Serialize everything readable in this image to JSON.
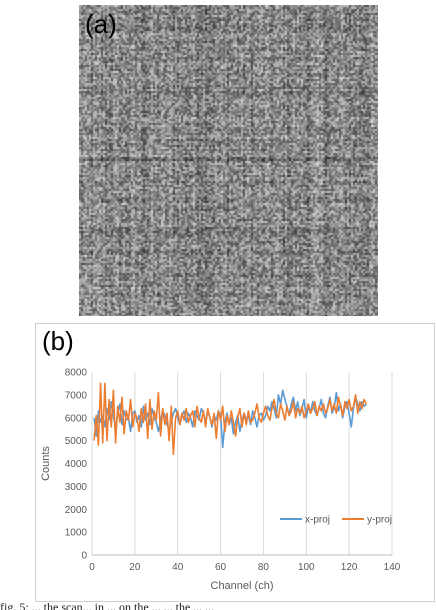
{
  "panel_a": {
    "label": "(a)"
  },
  "panel_b": {
    "label": "(b)"
  },
  "caption": "fig. 5: ... the scan... in ... on the ... ... the ... ...",
  "colors": {
    "x_proj": "#5b9bd5",
    "y_proj": "#ed7d31",
    "grid": "#d9d9d9",
    "axis_text": "#595959"
  },
  "chart_data": {
    "type": "line",
    "title": "",
    "xlabel": "Channel (ch)",
    "ylabel": "Counts",
    "xlim": [
      0,
      140
    ],
    "ylim": [
      0,
      8000
    ],
    "xticks": [
      0,
      20,
      40,
      60,
      80,
      100,
      120,
      140
    ],
    "yticks": [
      0,
      1000,
      2000,
      3000,
      4000,
      5000,
      6000,
      7000,
      8000
    ],
    "grid": "vertical",
    "legend_position": "bottom-right",
    "series": [
      {
        "name": "x-proj",
        "color": "#5b9bd5",
        "x": [
          1,
          2,
          3,
          4,
          5,
          6,
          7,
          8,
          9,
          10,
          11,
          12,
          13,
          14,
          15,
          16,
          17,
          18,
          19,
          20,
          21,
          22,
          23,
          24,
          25,
          26,
          27,
          28,
          29,
          30,
          31,
          32,
          33,
          34,
          35,
          36,
          37,
          38,
          39,
          40,
          41,
          42,
          43,
          44,
          45,
          46,
          47,
          48,
          49,
          50,
          51,
          52,
          53,
          54,
          55,
          56,
          57,
          58,
          59,
          60,
          61,
          62,
          63,
          64,
          65,
          66,
          67,
          68,
          69,
          70,
          71,
          72,
          73,
          74,
          75,
          76,
          77,
          78,
          79,
          80,
          81,
          82,
          83,
          84,
          85,
          86,
          87,
          88,
          89,
          90,
          91,
          92,
          93,
          94,
          95,
          96,
          97,
          98,
          99,
          100,
          101,
          102,
          103,
          104,
          105,
          106,
          107,
          108,
          109,
          110,
          111,
          112,
          113,
          114,
          115,
          116,
          117,
          118,
          119,
          120,
          121,
          122,
          123,
          124,
          125,
          126,
          127,
          128
        ],
        "values": [
          6000,
          5200,
          6300,
          5800,
          6100,
          5600,
          6400,
          5900,
          6700,
          6100,
          5500,
          6200,
          6600,
          5700,
          6300,
          5900,
          6000,
          5400,
          6200,
          6300,
          5800,
          6100,
          5600,
          6500,
          5900,
          6200,
          5700,
          6400,
          6000,
          5800,
          5400,
          5900,
          6300,
          6100,
          5700,
          5500,
          5800,
          6200,
          6400,
          6000,
          5700,
          6100,
          6300,
          5800,
          6200,
          6000,
          5600,
          6300,
          6100,
          5900,
          6400,
          6200,
          5800,
          6300,
          6000,
          5600,
          6100,
          5900,
          6300,
          6100,
          4700,
          5800,
          6200,
          5700,
          6000,
          5300,
          5800,
          6100,
          5400,
          5900,
          6200,
          5900,
          6100,
          5700,
          6300,
          6000,
          5600,
          6100,
          6200,
          5900,
          6100,
          6500,
          6300,
          6700,
          6400,
          6000,
          7000,
          6600,
          7200,
          6800,
          6500,
          6100,
          6600,
          6900,
          6300,
          6700,
          6100,
          6400,
          6800,
          6000,
          6500,
          6200,
          6700,
          6300,
          6100,
          6400,
          6800,
          6200,
          6000,
          6500,
          6900,
          6200,
          6400,
          7100,
          6300,
          6600,
          6000,
          6500,
          6700,
          6200,
          5600,
          6400,
          6900,
          6600,
          6300,
          6700,
          6500,
          6600
        ]
      },
      {
        "name": "y-proj",
        "color": "#ed7d31",
        "x": [
          1,
          2,
          3,
          4,
          5,
          6,
          7,
          8,
          9,
          10,
          11,
          12,
          13,
          14,
          15,
          16,
          17,
          18,
          19,
          20,
          21,
          22,
          23,
          24,
          25,
          26,
          27,
          28,
          29,
          30,
          31,
          32,
          33,
          34,
          35,
          36,
          37,
          38,
          39,
          40,
          41,
          42,
          43,
          44,
          45,
          46,
          47,
          48,
          49,
          50,
          51,
          52,
          53,
          54,
          55,
          56,
          57,
          58,
          59,
          60,
          61,
          62,
          63,
          64,
          65,
          66,
          67,
          68,
          69,
          70,
          71,
          72,
          73,
          74,
          75,
          76,
          77,
          78,
          79,
          80,
          81,
          82,
          83,
          84,
          85,
          86,
          87,
          88,
          89,
          90,
          91,
          92,
          93,
          94,
          95,
          96,
          97,
          98,
          99,
          100,
          101,
          102,
          103,
          104,
          105,
          106,
          107,
          108,
          109,
          110,
          111,
          112,
          113,
          114,
          115,
          116,
          117,
          118,
          119,
          120,
          121,
          122,
          123,
          124,
          125,
          126,
          127,
          128
        ],
        "values": [
          5000,
          6100,
          4800,
          7500,
          4900,
          7500,
          5000,
          6800,
          5600,
          7200,
          4900,
          6500,
          5800,
          6900,
          5300,
          6300,
          5900,
          6800,
          5600,
          6200,
          6000,
          5400,
          6400,
          5800,
          6600,
          5100,
          6800,
          5500,
          6300,
          5900,
          7100,
          5200,
          6400,
          5700,
          6200,
          5000,
          6500,
          4400,
          6000,
          6300,
          5700,
          6200,
          5900,
          6400,
          5800,
          6100,
          6300,
          5600,
          6500,
          6000,
          5800,
          6300,
          5600,
          6400,
          6000,
          5700,
          6200,
          5100,
          6300,
          5900,
          6500,
          5400,
          6100,
          5700,
          6300,
          5800,
          5200,
          6000,
          6400,
          5600,
          6200,
          5700,
          6300,
          5800,
          5900,
          6200,
          6600,
          6000,
          5800,
          6200,
          6500,
          6100,
          5900,
          6400,
          6800,
          6200,
          6000,
          6600,
          6300,
          5900,
          6500,
          6100,
          6300,
          6700,
          6000,
          6400,
          6200,
          6500,
          6000,
          6300,
          6600,
          6200,
          6400,
          6700,
          6100,
          6500,
          6300,
          6600,
          6200,
          6400,
          6800,
          6300,
          6600,
          6200,
          6900,
          6500,
          6100,
          6700,
          6400,
          6800,
          6300,
          6500,
          7000,
          6200,
          6700,
          6400,
          6800,
          6600
        ]
      }
    ]
  }
}
